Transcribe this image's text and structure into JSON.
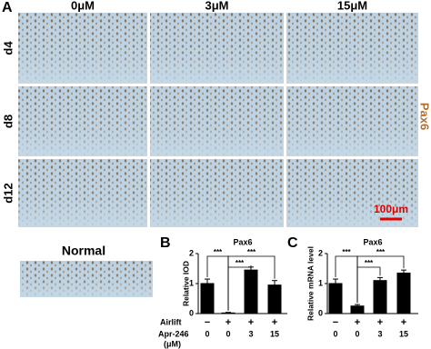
{
  "panel_labels": [
    "A",
    "B",
    "C"
  ],
  "panel_a": {
    "columns": [
      "0μM",
      "3μM",
      "15μM"
    ],
    "rows": [
      "d4",
      "d8",
      "d12"
    ],
    "stain": "Pax6",
    "scale_bar": "100μm",
    "normal_label": "Normal"
  },
  "x_row_labels": {
    "airlift": "Airlift",
    "treatment": "Apr-246",
    "unit": "(μM)"
  },
  "chart_data": [
    {
      "type": "bar",
      "title": "Pax6",
      "y_label": "Relative IOD",
      "airlift": [
        "−",
        "+",
        "+",
        "+"
      ],
      "categories": [
        "0",
        "0",
        "3",
        "15"
      ],
      "values": [
        1.0,
        0.02,
        1.45,
        0.95
      ],
      "errors": [
        0.15,
        0.02,
        0.1,
        0.15
      ],
      "fills": [
        "#000000",
        "#ffffff",
        "#000000",
        "#000000"
      ],
      "ylim": [
        0,
        2
      ],
      "yticks": [
        0,
        1,
        2
      ],
      "significance": [
        "***",
        "***",
        "***"
      ]
    },
    {
      "type": "bar",
      "title": "Pax6",
      "y_label": "Relative mRNA level",
      "airlift": [
        "−",
        "+",
        "+",
        "+"
      ],
      "categories": [
        "0",
        "0",
        "3",
        "15"
      ],
      "values": [
        1.0,
        0.25,
        1.1,
        1.35
      ],
      "errors": [
        0.15,
        0.05,
        0.1,
        0.1
      ],
      "fills": [
        "#000000",
        "#000000",
        "#000000",
        "#000000"
      ],
      "ylim": [
        0,
        2
      ],
      "yticks": [
        0,
        1,
        2
      ],
      "significance": [
        "***",
        "***",
        "***"
      ]
    }
  ]
}
